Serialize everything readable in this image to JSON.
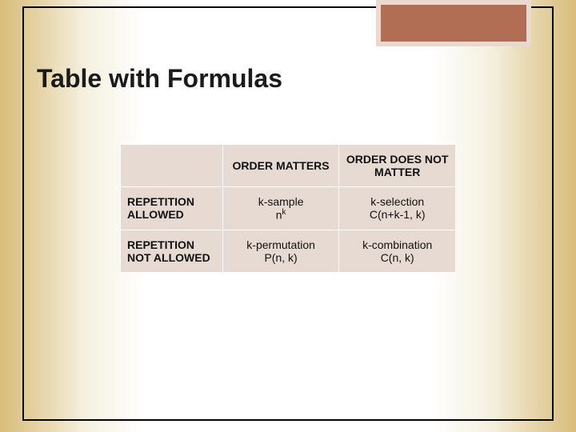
{
  "slide": {
    "title": "Table with Formulas",
    "background_gradient": [
      "#d8bc7a",
      "#ffffff",
      "#d8bc7a"
    ],
    "frame_color": "#000000",
    "corner_box": {
      "fill": "#b26e55",
      "border": "#e9d9cf",
      "border_width": 6
    }
  },
  "table": {
    "background": "#e7dad2",
    "border_color": "#ffffff",
    "font_size": 14,
    "columns": [
      "",
      "ORDER MATTERS",
      "ORDER DOES NOT MATTER"
    ],
    "rows": [
      {
        "header": "REPETITION ALLOWED",
        "cells": [
          {
            "name": "k-sample",
            "formula_html": "n<sup>k</sup>",
            "formula_text": "n^k"
          },
          {
            "name": "k-selection",
            "formula_html": "C(n+k-1, k)",
            "formula_text": "C(n+k-1, k)"
          }
        ]
      },
      {
        "header": "REPETITION NOT ALLOWED",
        "cells": [
          {
            "name": "k-permutation",
            "formula_html": "P(n, k)",
            "formula_text": "P(n, k)"
          },
          {
            "name": "k-combination",
            "formula_html": "C(n, k)",
            "formula_text": "C(n, k)"
          }
        ]
      }
    ]
  }
}
